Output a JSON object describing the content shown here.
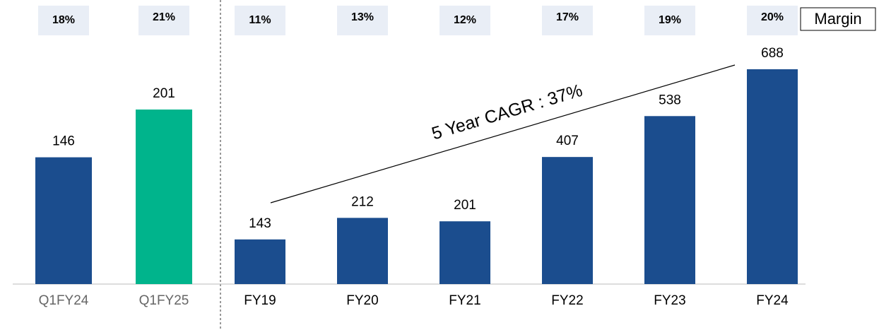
{
  "chart_data": [
    {
      "type": "bar",
      "categories": [
        "Q1FY24",
        "Q1FY25"
      ],
      "values": [
        146,
        201
      ],
      "colors": [
        "#1b4d8e",
        "#00b48c"
      ],
      "margin": {
        "values": [
          18,
          21
        ],
        "value_labels": [
          "18%",
          "21%"
        ]
      }
    },
    {
      "type": "bar",
      "categories": [
        "FY19",
        "FY20",
        "FY21",
        "FY22",
        "FY23",
        "FY24"
      ],
      "values": [
        143,
        212,
        201,
        407,
        538,
        688
      ],
      "colors": [
        "#1b4d8e",
        "#1b4d8e",
        "#1b4d8e",
        "#1b4d8e",
        "#1b4d8e",
        "#1b4d8e"
      ],
      "margin": {
        "values": [
          11,
          13,
          12,
          17,
          19,
          20
        ],
        "value_labels": [
          "11%",
          "13%",
          "12%",
          "17%",
          "19%",
          "20%"
        ]
      },
      "annotation": "5 Year CAGR : 37%"
    }
  ],
  "margin_label": "Margin"
}
